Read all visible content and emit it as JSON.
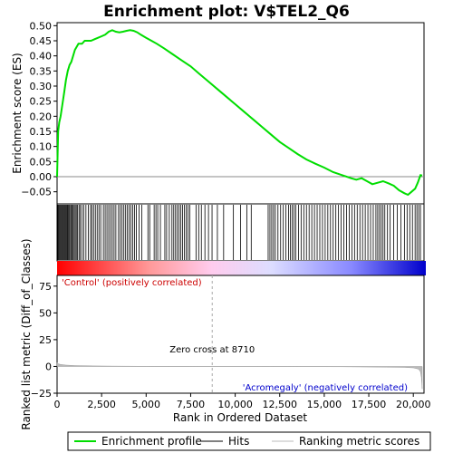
{
  "chart_data": {
    "type": "line",
    "title": "Enrichment plot: V$TEL2_Q6",
    "top_panel": {
      "ylabel": "Enrichment score (ES)",
      "ylim": [
        -0.09,
        0.51
      ],
      "yticks": [
        -0.05,
        0.0,
        0.05,
        0.1,
        0.15,
        0.2,
        0.25,
        0.3,
        0.35,
        0.4,
        0.45,
        0.5
      ],
      "ytick_labels": [
        "−0.05",
        "0.00",
        "0.05",
        "0.10",
        "0.15",
        "0.20",
        "0.25",
        "0.30",
        "0.35",
        "0.40",
        "0.45",
        "0.50"
      ],
      "series": [
        {
          "name": "Enrichment profile",
          "color": "#00dd00",
          "x": [
            0,
            60,
            120,
            200,
            300,
            400,
            500,
            600,
            700,
            800,
            900,
            1000,
            1100,
            1200,
            1400,
            1550,
            1700,
            1900,
            2100,
            2300,
            2500,
            2700,
            2900,
            3100,
            3300,
            3500,
            3700,
            3900,
            4100,
            4300,
            4500,
            4700,
            5000,
            5300,
            5600,
            6000,
            6500,
            7000,
            7500,
            8000,
            8500,
            9000,
            9500,
            10000,
            10500,
            11000,
            11500,
            12000,
            12500,
            13000,
            13500,
            14000,
            14500,
            15000,
            15500,
            16000,
            16500,
            16800,
            17100,
            17400,
            17700,
            18000,
            18300,
            18600,
            18900,
            19200,
            19500,
            19700,
            19900,
            20100,
            20250,
            20400,
            20500
          ],
          "y": [
            0.0,
            0.15,
            0.18,
            0.2,
            0.24,
            0.28,
            0.32,
            0.35,
            0.37,
            0.38,
            0.4,
            0.42,
            0.43,
            0.44,
            0.44,
            0.45,
            0.45,
            0.45,
            0.455,
            0.46,
            0.465,
            0.47,
            0.48,
            0.485,
            0.48,
            0.478,
            0.48,
            0.483,
            0.485,
            0.483,
            0.478,
            0.47,
            0.46,
            0.45,
            0.44,
            0.425,
            0.405,
            0.385,
            0.365,
            0.34,
            0.315,
            0.29,
            0.265,
            0.24,
            0.215,
            0.19,
            0.165,
            0.14,
            0.115,
            0.095,
            0.075,
            0.057,
            0.043,
            0.03,
            0.015,
            0.005,
            -0.005,
            -0.01,
            -0.005,
            -0.015,
            -0.025,
            -0.02,
            -0.015,
            -0.022,
            -0.03,
            -0.045,
            -0.055,
            -0.06,
            -0.05,
            -0.04,
            -0.02,
            0.005,
            0.004
          ]
        }
      ]
    },
    "hits_panel": {
      "label": "Hits",
      "color": "#000000"
    },
    "ranking_panel": {
      "ylabel": "Ranked list metric (Diff_of_Classes)",
      "xlabel": "Rank in Ordered Dataset",
      "ylim": [
        -25,
        85
      ],
      "yticks": [
        -25,
        0,
        25,
        50,
        75
      ],
      "ytick_labels": [
        "−25",
        "0",
        "25",
        "50",
        "75"
      ],
      "xticks": [
        0,
        2500,
        5000,
        7500,
        10000,
        12500,
        15000,
        17500,
        20000
      ],
      "xtick_labels": [
        "0",
        "2,500",
        "5,000",
        "7,500",
        "10,000",
        "12,500",
        "15,000",
        "17,500",
        "20,000"
      ],
      "xlim": [
        0,
        20600
      ],
      "zero_cross": 8710,
      "zero_cross_label": "Zero cross at 8710",
      "positive_label": "'Control' (positively correlated)",
      "negative_label": "'Acromegaly' (negatively correlated)",
      "positive_color": "#cc0000",
      "negative_color": "#0000cc",
      "metric_series": {
        "name": "Ranking metric scores",
        "x": [
          0,
          50,
          200,
          500,
          1000,
          2000,
          3000,
          5000,
          8710,
          12000,
          16000,
          18500,
          19500,
          20000,
          20300,
          20400,
          20450,
          20500
        ],
        "y": [
          3.5,
          2.5,
          1.8,
          1.2,
          0.8,
          0.5,
          0.3,
          0.1,
          0.0,
          -0.1,
          -0.3,
          -0.6,
          -0.9,
          -1.3,
          -2.5,
          -5.0,
          -10.0,
          -21.0
        ]
      }
    },
    "hit_positions": [
      10,
      40,
      80,
      130,
      180,
      230,
      280,
      330,
      380,
      430,
      480,
      530,
      580,
      620,
      670,
      720,
      780,
      840,
      900,
      960,
      1020,
      1080,
      1150,
      1230,
      1300,
      1400,
      1500,
      1620,
      1750,
      1880,
      1950,
      2050,
      2150,
      2250,
      2350,
      2450,
      2600,
      2700,
      2800,
      2900,
      3000,
      3100,
      3200,
      3300,
      3450,
      3550,
      3650,
      3750,
      3850,
      3950,
      4050,
      4150,
      4250,
      4350,
      4450,
      4600,
      4750,
      5100,
      5200,
      5450,
      5550,
      5650,
      5800,
      6050,
      6150,
      6300,
      6450,
      6550,
      6650,
      6750,
      6850,
      6950,
      7050,
      7150,
      7250,
      7350,
      7450,
      7800,
      7950,
      8100,
      8300,
      8500,
      8700,
      9000,
      9350,
      9900,
      10300,
      10650,
      10900,
      11850,
      11950,
      12050,
      12150,
      12250,
      12400,
      12550,
      12700,
      12850,
      13000,
      13100,
      13200,
      13300,
      13400,
      13550,
      13700,
      13850,
      14000,
      14150,
      14300,
      14450,
      14600,
      14750,
      14900,
      15050,
      15200,
      15350,
      15500,
      15650,
      15800,
      15950,
      16100,
      16250,
      16400,
      16550,
      16700,
      16850,
      17000,
      17150,
      17300,
      17450,
      17600,
      17750,
      17900,
      18000,
      18100,
      18200,
      18300,
      18400,
      18550,
      18700,
      18900,
      19100,
      19300,
      19500,
      19650,
      19800,
      19950,
      20100,
      20200,
      20300,
      20400
    ],
    "legend": [
      {
        "label": "Enrichment profile",
        "color": "#00dd00"
      },
      {
        "label": "Hits",
        "color": "#000000"
      },
      {
        "label": "Ranking metric scores",
        "color": "#bbbbbb"
      }
    ]
  }
}
